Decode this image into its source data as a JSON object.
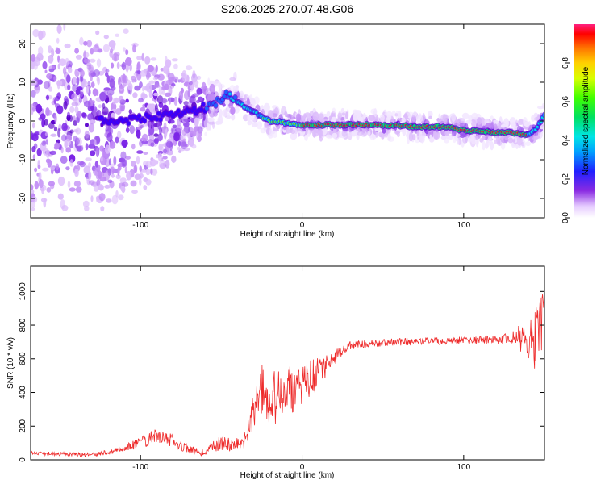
{
  "figure_title": "S206.2025.270.07.48.G06",
  "colors": {
    "snr_line": "#ee2b2b",
    "axis": "#000000",
    "spectral_ridge": "#e8212b"
  },
  "chart_data": [
    {
      "type": "heatmap",
      "title": "S206.2025.270.07.48.G06",
      "xlabel": "Height of straight line (km)",
      "ylabel": "Frequency (Hz)",
      "xlim": [
        -168,
        150
      ],
      "ylim": [
        -25,
        25
      ],
      "x_ticks": [
        -100,
        0,
        100
      ],
      "x_tick_labels": [
        "-100",
        "0",
        "100"
      ],
      "y_ticks": [
        -20,
        -10,
        0,
        10,
        20
      ],
      "y_tick_labels": [
        "-20",
        "-10",
        "0",
        "10",
        "20"
      ],
      "ridge": {
        "x": [
          -120,
          -100,
          -80,
          -60,
          -50,
          -45,
          -40,
          -35,
          -30,
          -25,
          -20,
          -10,
          0,
          10,
          20,
          40,
          60,
          70,
          80,
          90,
          100,
          110,
          120,
          130,
          140,
          145,
          150
        ],
        "y": [
          0,
          0.5,
          1.5,
          3.5,
          5.5,
          7,
          5,
          3.5,
          2.5,
          1,
          0,
          -0.5,
          -1,
          -1,
          -1,
          -1,
          -1.2,
          -1.5,
          -1.5,
          -1.5,
          -2.5,
          -2.5,
          -3,
          -3,
          -3.5,
          -2,
          1.5
        ]
      },
      "colorbar": {
        "label": "Normalized spectral amplitude",
        "min": 0,
        "max": 1,
        "ticks": [
          0.0,
          0.2,
          0.4,
          0.6,
          0.8
        ],
        "tick_labels": [
          "0.0",
          "0.2",
          "0.4",
          "0.6",
          "0.8"
        ]
      }
    },
    {
      "type": "line",
      "title": "",
      "xlabel": "Height of straight line (km)",
      "ylabel": "SNR (10 * v/v)",
      "xlim": [
        -168,
        150
      ],
      "ylim": [
        0,
        1150
      ],
      "x_ticks": [
        -100,
        0,
        100
      ],
      "x_tick_labels": [
        "-100",
        "0",
        "100"
      ],
      "y_ticks": [
        0,
        200,
        400,
        600,
        800,
        1000
      ],
      "y_tick_labels": [
        "0",
        "200",
        "400",
        "600",
        "800",
        "1000"
      ],
      "series": [
        {
          "name": "SNR",
          "x": [
            -168,
            -150,
            -130,
            -120,
            -110,
            -100,
            -95,
            -90,
            -85,
            -80,
            -75,
            -70,
            -65,
            -60,
            -55,
            -50,
            -45,
            -40,
            -35,
            -32,
            -30,
            -25,
            -20,
            -15,
            -10,
            -5,
            0,
            5,
            10,
            15,
            20,
            25,
            30,
            40,
            60,
            80,
            100,
            120,
            130,
            135,
            140,
            145,
            148,
            150
          ],
          "y": [
            40,
            35,
            30,
            45,
            70,
            100,
            120,
            150,
            130,
            110,
            85,
            60,
            45,
            50,
            80,
            100,
            90,
            100,
            120,
            200,
            300,
            420,
            350,
            380,
            420,
            400,
            450,
            480,
            520,
            560,
            600,
            650,
            680,
            690,
            700,
            705,
            710,
            715,
            720,
            720,
            700,
            720,
            800,
            850
          ],
          "noise": [
            12,
            12,
            12,
            15,
            20,
            35,
            40,
            45,
            45,
            40,
            30,
            25,
            25,
            25,
            35,
            45,
            40,
            45,
            55,
            90,
            120,
            150,
            160,
            160,
            150,
            140,
            120,
            110,
            100,
            70,
            50,
            30,
            25,
            22,
            22,
            22,
            22,
            25,
            40,
            100,
            120,
            250,
            220,
            150
          ]
        }
      ]
    }
  ]
}
